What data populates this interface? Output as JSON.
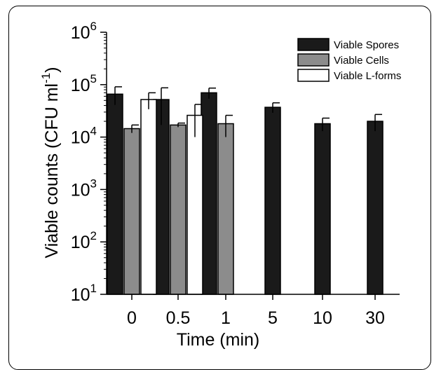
{
  "chart_data": {
    "type": "bar",
    "yscale": "log",
    "ylim": [
      10,
      1000000
    ],
    "ylabel": "Viable counts (CFU ml",
    "ylabel_sup": "-1",
    "ylabel_close": ")",
    "xlabel": "Time (min)",
    "categories": [
      "0",
      "0.5",
      "1",
      "5",
      "10",
      "30"
    ],
    "y_ticks": [
      {
        "base": "10",
        "exp": "1"
      },
      {
        "base": "10",
        "exp": "2"
      },
      {
        "base": "10",
        "exp": "3"
      },
      {
        "base": "10",
        "exp": "4"
      },
      {
        "base": "10",
        "exp": "5"
      },
      {
        "base": "10",
        "exp": "6"
      }
    ],
    "legend_position": "top-right",
    "series": [
      {
        "name": "Viable Spores",
        "color": "#1a1a1a",
        "values": [
          66000,
          52000,
          70000,
          37000,
          18000,
          20000
        ],
        "errors": [
          25000,
          35000,
          16000,
          8000,
          5000,
          7000
        ]
      },
      {
        "name": "Viable Cells",
        "color": "#8c8c8c",
        "values": [
          14500,
          17000,
          18000,
          null,
          null,
          null
        ],
        "errors": [
          2500,
          1500,
          8000,
          null,
          null,
          null
        ]
      },
      {
        "name": "Viable L-forms",
        "color": "#ffffff",
        "values": [
          52000,
          26000,
          null,
          null,
          null,
          null
        ],
        "errors": [
          18000,
          16000,
          null,
          null,
          null,
          null
        ]
      }
    ]
  }
}
